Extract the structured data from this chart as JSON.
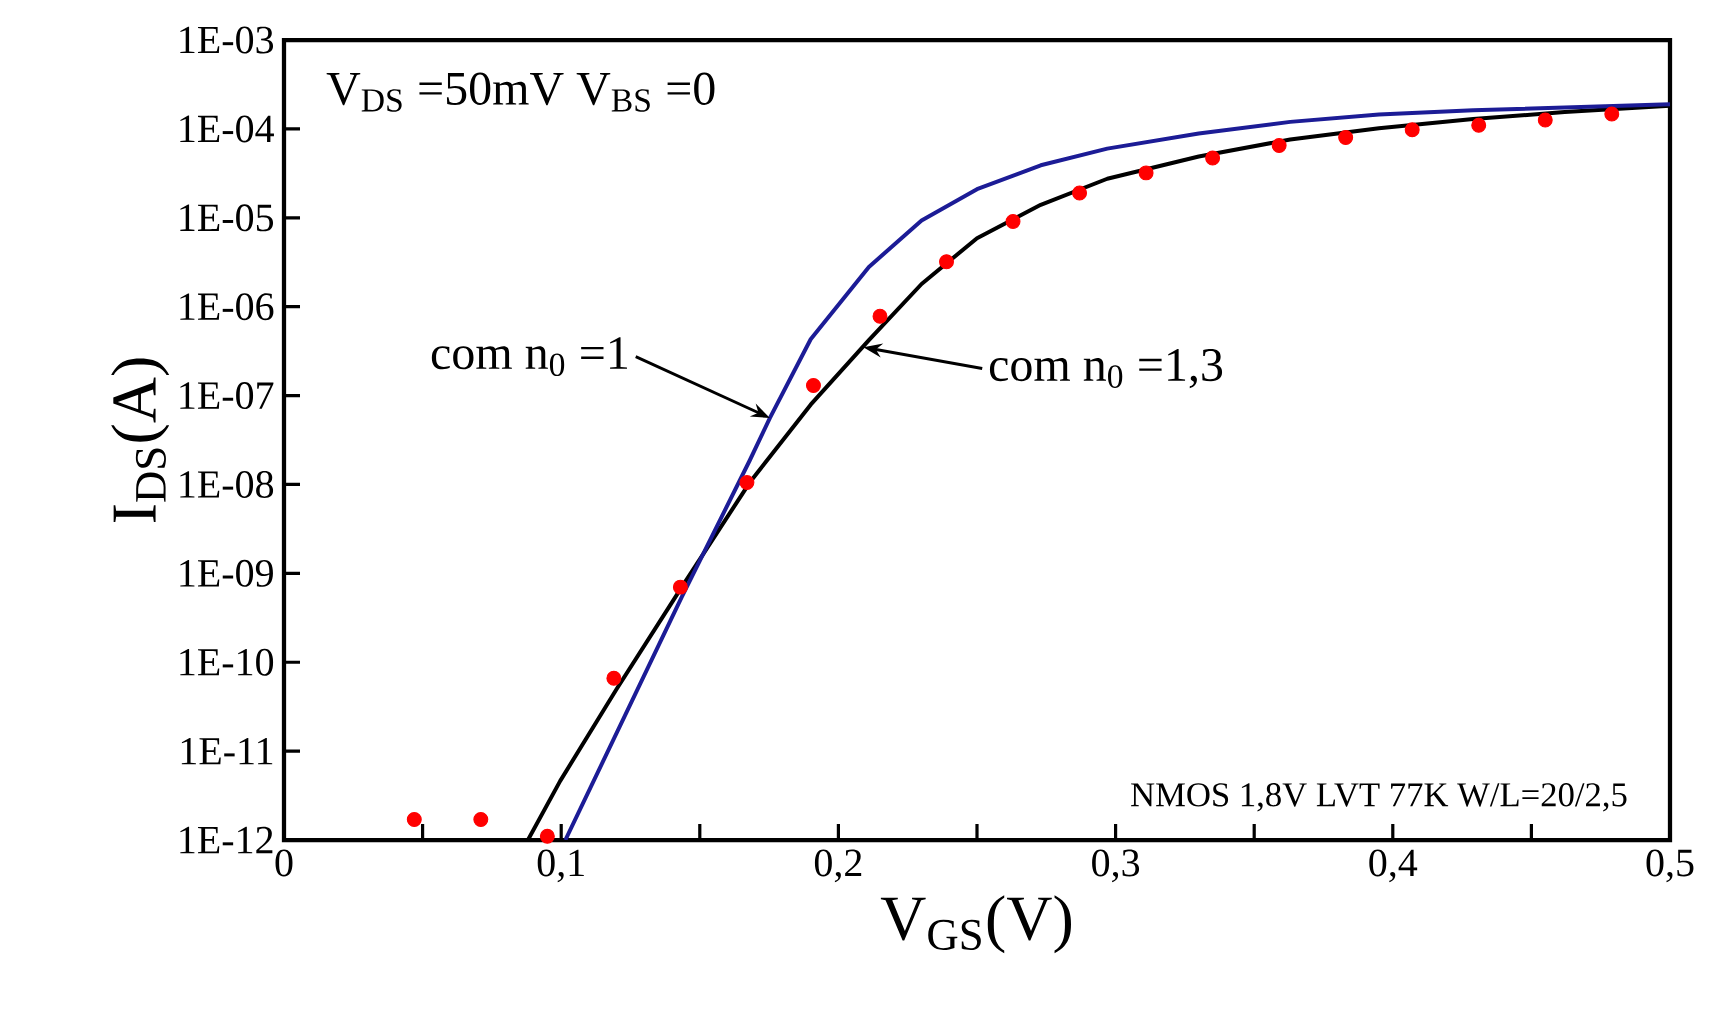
{
  "chart_data": {
    "type": "line",
    "xlabel": "V$_{GS}$(V)",
    "ylabel": "I$_{DS}$(A)",
    "log": "y",
    "xlim": [
      0,
      0.5
    ],
    "ylim": [
      1e-12,
      0.001
    ],
    "xticks": [
      {
        "value": 0,
        "label": "0"
      },
      {
        "value": 0.05,
        "label": null
      },
      {
        "value": 0.1,
        "label": "0,1"
      },
      {
        "value": 0.15,
        "label": null
      },
      {
        "value": 0.2,
        "label": "0,2"
      },
      {
        "value": 0.25,
        "label": null
      },
      {
        "value": 0.3,
        "label": "0,3"
      },
      {
        "value": 0.35,
        "label": null
      },
      {
        "value": 0.4,
        "label": "0,4"
      },
      {
        "value": 0.45,
        "label": null
      },
      {
        "value": 0.5,
        "label": "0,5"
      }
    ],
    "yticks": [
      {
        "value": 1e-12,
        "label": "1E-12"
      },
      {
        "value": 1e-11,
        "label": "1E-11"
      },
      {
        "value": 1e-10,
        "label": "1E-10"
      },
      {
        "value": 1e-09,
        "label": "1E-09"
      },
      {
        "value": 1e-08,
        "label": "1E-08"
      },
      {
        "value": 1e-07,
        "label": "1E-07"
      },
      {
        "value": 1e-06,
        "label": "1E-06"
      },
      {
        "value": 1e-05,
        "label": "1E-05"
      },
      {
        "value": 0.0001,
        "label": "1E-04"
      },
      {
        "value": 0.001,
        "label": "1E-03"
      }
    ],
    "series": [
      {
        "type": "scatter",
        "marker": "circle",
        "color": "#ff0000",
        "x": [
          0.047,
          0.071,
          0.095,
          0.119,
          0.143,
          0.167,
          0.191,
          0.215,
          0.239,
          0.263,
          0.287,
          0.311,
          0.335,
          0.359,
          0.383,
          0.407,
          0.431,
          0.455,
          0.479
        ],
        "values": [
          1.7e-12,
          1.7e-12,
          1.1e-12,
          6.6e-11,
          7e-10,
          1.05e-08,
          1.3e-07,
          7.8e-07,
          3.2e-06,
          9.1e-06,
          1.9e-05,
          3.2e-05,
          4.7e-05,
          6.5e-05,
          8e-05,
          9.8e-05,
          0.00011,
          0.000126,
          0.000147
        ]
      },
      {
        "marker": "none",
        "line_style": "solid",
        "color": "#000000",
        "x": [
          0.088,
          0.0996,
          0.12,
          0.1436,
          0.168,
          0.19,
          0.211,
          0.23,
          0.25,
          0.273,
          0.297,
          0.33,
          0.363,
          0.395,
          0.429,
          0.462,
          0.5
        ],
        "values": [
          1e-12,
          4.6e-12,
          5e-11,
          7.1e-10,
          1.05e-08,
          7.9e-08,
          4.2e-07,
          1.8e-06,
          5.9e-06,
          1.4e-05,
          2.75e-05,
          4.9e-05,
          7.6e-05,
          0.000102,
          0.000129,
          0.000155,
          0.000182
        ]
      },
      {
        "marker": "none",
        "line_style": "solid",
        "color": "#1c1c96",
        "x": [
          0.1015,
          0.1436,
          0.168,
          0.1753,
          0.19,
          0.211,
          0.23,
          0.25,
          0.273,
          0.297,
          0.33,
          0.363,
          0.395,
          0.429,
          0.5
        ],
        "values": [
          1e-12,
          5.5e-10,
          1.86e-08,
          5.6e-08,
          4.3e-07,
          2.8e-06,
          9.3e-06,
          2.1e-05,
          3.9e-05,
          6e-05,
          8.9e-05,
          0.00012,
          0.000145,
          0.000162,
          0.00019
        ]
      }
    ],
    "annotations": [
      "V$_{DS}$ =50mV  V$_{BS}$ =0",
      "NMOS 1,8V  LVT 77K  W/L=20/2,5",
      {
        "text": "com n$_{0}$ =1",
        "x": 0.1753,
        "y": 5.6e-08
      },
      {
        "text": "com n$_{0}$ =1,3",
        "x": 0.209,
        "y": 3.5e-07
      }
    ]
  }
}
